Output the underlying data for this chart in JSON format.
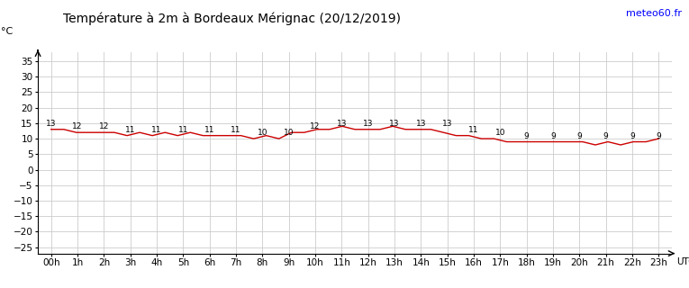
{
  "title": "Température à 2m à Bordeaux Mérignac (20/12/2019)",
  "ylabel": "°C",
  "xlabel_right": "UTC",
  "watermark": "meteo60.fr",
  "temperatures": [
    13,
    13,
    12,
    12,
    12,
    12,
    11,
    12,
    11,
    12,
    11,
    12,
    11,
    11,
    11,
    11,
    10,
    11,
    10,
    12,
    12,
    13,
    13,
    14,
    13,
    13,
    13,
    14,
    13,
    13,
    13,
    12,
    11,
    11,
    10,
    10,
    9,
    9,
    9,
    9,
    9,
    9,
    9,
    8,
    9,
    8,
    9,
    9,
    10
  ],
  "hours": [
    "00h",
    "1h",
    "2h",
    "3h",
    "4h",
    "5h",
    "6h",
    "7h",
    "8h",
    "9h",
    "10h",
    "11h",
    "12h",
    "13h",
    "14h",
    "15h",
    "16h",
    "17h",
    "18h",
    "19h",
    "20h",
    "21h",
    "22h",
    "23h"
  ],
  "ylim": [
    -27,
    38
  ],
  "yticks": [
    -25,
    -20,
    -15,
    -10,
    -5,
    0,
    5,
    10,
    15,
    20,
    25,
    30,
    35
  ],
  "line_color": "#cc0000",
  "grid_color": "#cccccc",
  "background_color": "#ffffff",
  "title_fontsize": 10,
  "tick_fontsize": 7.5,
  "label_fontsize": 8,
  "temp_label_fontsize": 6.5
}
